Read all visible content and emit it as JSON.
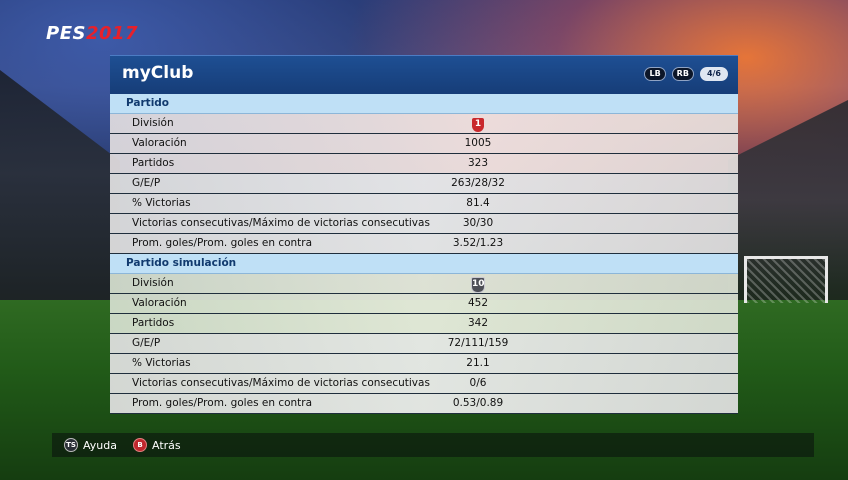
{
  "brand": {
    "pes": "PES",
    "year": "2017"
  },
  "header": {
    "title": "myClub",
    "badges": {
      "lb": "LB",
      "rb": "RB",
      "page": "4/6"
    }
  },
  "sections": [
    {
      "title": "Partido",
      "rows": [
        {
          "label": "División",
          "value": "1",
          "shield": "red"
        },
        {
          "label": "Valoración",
          "value": "1005"
        },
        {
          "label": "Partidos",
          "value": "323"
        },
        {
          "label": "G/E/P",
          "value": "263/28/32"
        },
        {
          "label": "% Victorias",
          "value": "81.4"
        },
        {
          "label": "Victorias consecutivas/Máximo de victorias consecutivas",
          "value": "30/30"
        },
        {
          "label": "Prom. goles/Prom. goles en contra",
          "value": "3.52/1.23"
        }
      ]
    },
    {
      "title": "Partido simulación",
      "rows": [
        {
          "label": "División",
          "value": "10",
          "shield": "dark"
        },
        {
          "label": "Valoración",
          "value": "452"
        },
        {
          "label": "Partidos",
          "value": "342"
        },
        {
          "label": "G/E/P",
          "value": "72/111/159"
        },
        {
          "label": "% Victorias",
          "value": "21.1"
        },
        {
          "label": "Victorias consecutivas/Máximo de victorias consecutivas",
          "value": "0/6"
        },
        {
          "label": "Prom. goles/Prom. goles en contra",
          "value": "0.53/0.89"
        }
      ]
    }
  ],
  "footer": {
    "help": {
      "icon_text": "TS",
      "label": "Ayuda"
    },
    "back": {
      "icon_text": "B",
      "label": "Atrás"
    }
  },
  "colors": {
    "header_blue": "#1e4f93",
    "section_blue": "#bfe0f6",
    "red_accent": "#c9282c"
  }
}
